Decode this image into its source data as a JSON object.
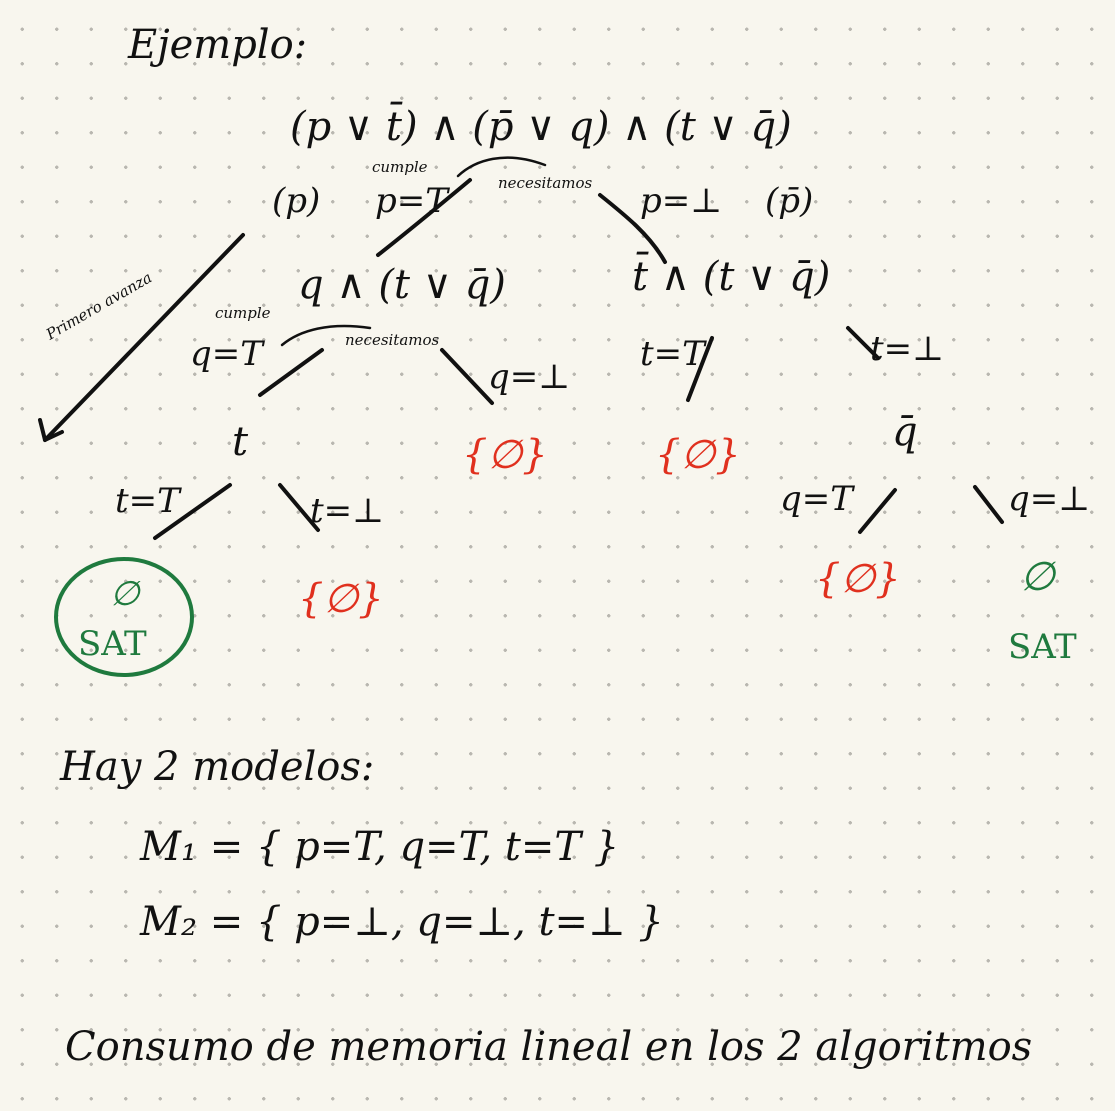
{
  "title": "Ejemplo:",
  "formula": "(p ∨ t̄) ∧ (p̄ ∨ q) ∧ (t ∨ q̄)",
  "tree": {
    "left_branch_tag": "(p)",
    "left_branch_label": "p=T",
    "right_branch_label": "p=⊥",
    "right_branch_tag": "(p̄)",
    "note_cumple_1": "cumple",
    "note_necesitamos_1": "necesitamos",
    "note_primero": "Primero avanza",
    "left_node": "q ∧ (t ∨ q̄)",
    "right_node": "t̄ ∧ (t ∨ q̄)",
    "note_cumple_2": "cumple",
    "note_necesitamos_2": "necesitamos",
    "ll_label": "q=T",
    "lr_label": "q=⊥",
    "rl_label": "t=T",
    "rr_label": "t=⊥",
    "ll_node": "t",
    "lr_result": "{∅}",
    "rl_result": "{∅}",
    "rr_node": "q̄",
    "lll_label": "t=T",
    "llr_label": "t=⊥",
    "rrl_label": "q=T",
    "rrr_label": "q=⊥",
    "lll_result": "∅",
    "lll_sat": "SAT",
    "llr_result": "{∅}",
    "rrl_result": "{∅}",
    "rrr_result": "∅",
    "rrr_sat": "SAT"
  },
  "models_header": "Hay 2 modelos:",
  "model_1": "M₁ = { p=T, q=T, t=T }",
  "model_2": "M₂ = { p=⊥, q=⊥, t=⊥ }",
  "footer": "Consumo de memoria lineal en los 2 algoritmos",
  "colors": {
    "ink": "#111111",
    "red": "#e0301e",
    "green": "#1f7a3e",
    "paper": "#f8f6ee"
  }
}
